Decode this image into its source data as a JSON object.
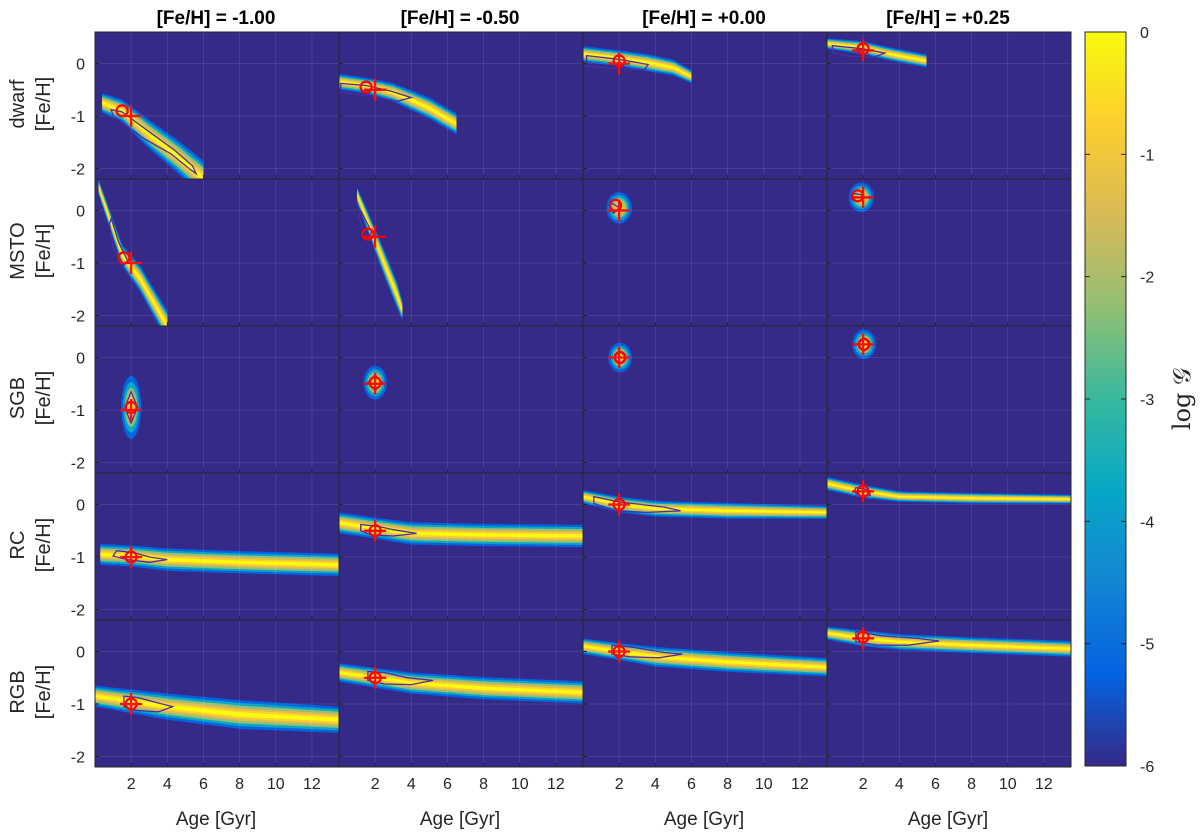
{
  "chart_data": {
    "type": "heatmap",
    "column_titles": [
      "[Fe/H] = -1.00",
      "[Fe/H] = -0.50",
      "[Fe/H] = +0.00",
      "[Fe/H] = +0.25"
    ],
    "row_labels": [
      "dwarf",
      "MSTO",
      "SGB",
      "RC",
      "RGB"
    ],
    "ylabel": "[Fe/H]",
    "xlabel": "Age [Gyr]",
    "x_ticks": [
      2,
      4,
      6,
      8,
      10,
      12
    ],
    "y_ticks": [
      0,
      -1,
      -2
    ],
    "xlim": [
      0,
      13.5
    ],
    "ylim": [
      -2.2,
      0.6
    ],
    "colorbar": {
      "label": "log 𝒢",
      "ticks": [
        0,
        -1,
        -2,
        -3,
        -4,
        -5,
        -6
      ],
      "range": [
        -6,
        0
      ],
      "colormap": "parula"
    },
    "true_values": {
      "age": [
        2,
        2,
        2,
        2
      ],
      "feh": [
        -1.0,
        -0.5,
        0.0,
        0.25
      ]
    },
    "panels": [
      [
        {
          "shape": "band",
          "pts": [
            [
              0.4,
              -0.75,
              0.15
            ],
            [
              1.5,
              -0.9,
              0.17
            ],
            [
              3,
              -1.35,
              0.22
            ],
            [
              4.5,
              -1.75,
              0.25
            ],
            [
              6,
              -2.2,
              0.28
            ]
          ],
          "peak": [
            1.5,
            -0.9
          ],
          "contour": [
            [
              0.9,
              -0.88
            ],
            [
              1.5,
              -0.92
            ],
            [
              3,
              -1.3
            ],
            [
              4.4,
              -1.65
            ],
            [
              5.4,
              -1.95
            ],
            [
              5.6,
              -2.1
            ],
            [
              5.2,
              -2.0
            ],
            [
              4.2,
              -1.72
            ],
            [
              2.8,
              -1.45
            ],
            [
              1.6,
              -1.15
            ],
            [
              1.0,
              -1.0
            ]
          ]
        },
        {
          "shape": "band",
          "pts": [
            [
              0,
              -0.35,
              0.12
            ],
            [
              1.5,
              -0.42,
              0.12
            ],
            [
              3,
              -0.55,
              0.14
            ],
            [
              5,
              -0.85,
              0.16
            ],
            [
              6.5,
              -1.15,
              0.16
            ]
          ],
          "peak": [
            1.5,
            -0.45
          ],
          "contour": [
            [
              0.1,
              -0.38
            ],
            [
              1.5,
              -0.42
            ],
            [
              2.8,
              -0.52
            ],
            [
              4.0,
              -0.65
            ],
            [
              3.2,
              -0.72
            ],
            [
              1.8,
              -0.62
            ],
            [
              0.1,
              -0.55
            ]
          ]
        },
        {
          "shape": "band",
          "pts": [
            [
              0,
              0.18,
              0.12
            ],
            [
              2,
              0.1,
              0.12
            ],
            [
              3.5,
              0.02,
              0.13
            ],
            [
              5,
              -0.08,
              0.12
            ],
            [
              6,
              -0.25,
              0.1
            ]
          ],
          "peak": [
            2,
            0.05
          ],
          "contour": [
            [
              0.2,
              0.15
            ],
            [
              2,
              0.08
            ],
            [
              3.6,
              -0.02
            ],
            [
              3.4,
              -0.12
            ],
            [
              2.0,
              -0.1
            ],
            [
              0.2,
              -0.05
            ]
          ]
        },
        {
          "shape": "band",
          "pts": [
            [
              0,
              0.38,
              0.08
            ],
            [
              2,
              0.3,
              0.1
            ],
            [
              3.5,
              0.18,
              0.1
            ],
            [
              5.5,
              0.05,
              0.1
            ]
          ],
          "peak": [
            2,
            0.28
          ],
          "contour": [
            [
              0.3,
              0.34
            ],
            [
              2,
              0.28
            ],
            [
              3.2,
              0.2
            ],
            [
              2.6,
              0.12
            ],
            [
              1.2,
              0.14
            ],
            [
              0.3,
              0.22
            ]
          ]
        }
      ],
      [
        {
          "shape": "band",
          "pts": [
            [
              0.2,
              0.45,
              0.12
            ],
            [
              1.5,
              -0.85,
              0.16
            ],
            [
              2.5,
              -1.3,
              0.2
            ],
            [
              3.5,
              -1.9,
              0.22
            ],
            [
              4,
              -2.2,
              0.24
            ]
          ],
          "peak": [
            1.6,
            -0.9
          ],
          "contour": [
            [
              0.9,
              -0.15
            ],
            [
              1.3,
              -0.6
            ],
            [
              1.8,
              -0.95
            ],
            [
              1.6,
              -1.05
            ],
            [
              1.0,
              -0.7
            ],
            [
              0.8,
              -0.25
            ]
          ]
        },
        {
          "shape": "band",
          "pts": [
            [
              1.0,
              0.3,
              0.12
            ],
            [
              1.7,
              -0.3,
              0.16
            ],
            [
              2.5,
              -1.0,
              0.2
            ],
            [
              3.2,
              -1.6,
              0.2
            ],
            [
              3.5,
              -1.9,
              0.15
            ]
          ],
          "peak": [
            1.6,
            -0.45
          ],
          "contour": [
            [
              1.2,
              0.0
            ],
            [
              1.8,
              -0.4
            ],
            [
              1.7,
              -0.55
            ],
            [
              1.3,
              -0.35
            ],
            [
              1.1,
              -0.1
            ]
          ]
        },
        {
          "shape": "blob",
          "cx": 2.0,
          "cy": 0.05,
          "rx": 0.7,
          "ry": 0.3,
          "peak": [
            1.8,
            0.1
          ],
          "contour": [
            [
              1.5,
              0.15
            ],
            [
              1.8,
              0.1
            ],
            [
              2.0,
              0.05
            ],
            [
              1.7,
              -0.05
            ],
            [
              1.5,
              0.05
            ]
          ]
        },
        {
          "shape": "blob",
          "cx": 1.9,
          "cy": 0.25,
          "rx": 0.7,
          "ry": 0.28,
          "peak": [
            1.7,
            0.28
          ],
          "contour": [
            [
              1.4,
              0.33
            ],
            [
              1.9,
              0.3
            ],
            [
              2.0,
              0.2
            ],
            [
              1.5,
              0.18
            ],
            [
              1.3,
              0.25
            ]
          ]
        }
      ],
      [
        {
          "shape": "blob",
          "cx": 2.0,
          "cy": -0.95,
          "rx": 0.55,
          "ry": 0.6,
          "peak": [
            2.0,
            -0.95
          ],
          "contour": [
            [
              2.0,
              -0.65
            ],
            [
              2.35,
              -0.95
            ],
            [
              2.0,
              -1.25
            ],
            [
              1.65,
              -0.95
            ]
          ]
        },
        {
          "shape": "blob",
          "cx": 2.0,
          "cy": -0.48,
          "rx": 0.65,
          "ry": 0.32,
          "peak": [
            2.0,
            -0.48
          ],
          "contour": [
            [
              2.0,
              -0.33
            ],
            [
              2.4,
              -0.48
            ],
            [
              2.0,
              -0.63
            ],
            [
              1.6,
              -0.48
            ]
          ]
        },
        {
          "shape": "blob",
          "cx": 2.05,
          "cy": 0.0,
          "rx": 0.65,
          "ry": 0.28,
          "peak": [
            2.05,
            0.0
          ],
          "contour": [
            [
              2.05,
              0.12
            ],
            [
              2.4,
              0.0
            ],
            [
              2.05,
              -0.12
            ],
            [
              1.7,
              0.0
            ]
          ]
        },
        {
          "shape": "blob",
          "cx": 2.05,
          "cy": 0.25,
          "rx": 0.65,
          "ry": 0.28,
          "peak": [
            2.05,
            0.25
          ],
          "contour": [
            [
              2.05,
              0.37
            ],
            [
              2.4,
              0.25
            ],
            [
              2.05,
              0.13
            ],
            [
              1.7,
              0.25
            ]
          ]
        }
      ],
      [
        {
          "shape": "band",
          "pts": [
            [
              0.3,
              -0.95,
              0.16
            ],
            [
              2,
              -0.98,
              0.16
            ],
            [
              4,
              -1.05,
              0.17
            ],
            [
              8,
              -1.1,
              0.17
            ],
            [
              13.5,
              -1.15,
              0.17
            ]
          ],
          "peak": [
            2,
            -1.0
          ],
          "contour": [
            [
              1.2,
              -0.88
            ],
            [
              2.2,
              -0.92
            ],
            [
              3.0,
              -1.0
            ],
            [
              4.0,
              -1.05
            ],
            [
              3.0,
              -1.1
            ],
            [
              1.8,
              -1.05
            ],
            [
              1.0,
              -0.98
            ]
          ]
        },
        {
          "shape": "band",
          "pts": [
            [
              0,
              -0.35,
              0.16
            ],
            [
              2,
              -0.45,
              0.16
            ],
            [
              4,
              -0.55,
              0.17
            ],
            [
              8,
              -0.58,
              0.17
            ],
            [
              13.5,
              -0.6,
              0.17
            ]
          ],
          "peak": [
            2,
            -0.5
          ],
          "contour": [
            [
              1.2,
              -0.38
            ],
            [
              2.2,
              -0.42
            ],
            [
              3.0,
              -0.48
            ],
            [
              4.3,
              -0.55
            ],
            [
              3.0,
              -0.6
            ],
            [
              1.8,
              -0.58
            ],
            [
              1.2,
              -0.5
            ]
          ]
        },
        {
          "shape": "band",
          "pts": [
            [
              0,
              0.15,
              0.1
            ],
            [
              2,
              0.0,
              0.12
            ],
            [
              4,
              -0.08,
              0.12
            ],
            [
              8,
              -0.12,
              0.12
            ],
            [
              13.5,
              -0.15,
              0.1
            ]
          ],
          "peak": [
            2,
            0.0
          ],
          "contour": [
            [
              0.6,
              0.15
            ],
            [
              2,
              0.05
            ],
            [
              4.5,
              -0.05
            ],
            [
              5.4,
              -0.12
            ],
            [
              3.5,
              -0.15
            ],
            [
              1.8,
              -0.12
            ],
            [
              0.6,
              0.02
            ]
          ]
        },
        {
          "shape": "band",
          "pts": [
            [
              0,
              0.4,
              0.1
            ],
            [
              2,
              0.25,
              0.1
            ],
            [
              4,
              0.15,
              0.08
            ],
            [
              8,
              0.12,
              0.08
            ],
            [
              13.5,
              0.1,
              0.07
            ]
          ],
          "peak": [
            2,
            0.25
          ],
          "contour": [
            [
              1.6,
              0.32
            ],
            [
              2.3,
              0.28
            ],
            [
              2.4,
              0.18
            ],
            [
              1.8,
              0.16
            ],
            [
              1.5,
              0.25
            ]
          ]
        }
      ],
      [
        {
          "shape": "band",
          "pts": [
            [
              0,
              -0.85,
              0.16
            ],
            [
              2,
              -0.95,
              0.18
            ],
            [
              4,
              -1.05,
              0.2
            ],
            [
              8,
              -1.2,
              0.22
            ],
            [
              13.5,
              -1.3,
              0.2
            ]
          ],
          "peak": [
            2,
            -1.0
          ],
          "contour": [
            [
              1.6,
              -0.85
            ],
            [
              2.4,
              -0.88
            ],
            [
              3.5,
              -0.98
            ],
            [
              4.3,
              -1.05
            ],
            [
              3.5,
              -1.15
            ],
            [
              2.2,
              -1.12
            ],
            [
              1.6,
              -1.05
            ]
          ]
        },
        {
          "shape": "band",
          "pts": [
            [
              0,
              -0.4,
              0.14
            ],
            [
              2,
              -0.5,
              0.15
            ],
            [
              4,
              -0.6,
              0.16
            ],
            [
              8,
              -0.7,
              0.17
            ],
            [
              13.5,
              -0.78,
              0.17
            ]
          ],
          "peak": [
            2,
            -0.5
          ],
          "contour": [
            [
              1.6,
              -0.38
            ],
            [
              2.5,
              -0.4
            ],
            [
              3.8,
              -0.5
            ],
            [
              5.2,
              -0.55
            ],
            [
              4.0,
              -0.63
            ],
            [
              2.5,
              -0.62
            ],
            [
              1.6,
              -0.55
            ]
          ]
        },
        {
          "shape": "band",
          "pts": [
            [
              0,
              0.1,
              0.12
            ],
            [
              2,
              0.0,
              0.13
            ],
            [
              4,
              -0.1,
              0.15
            ],
            [
              8,
              -0.2,
              0.15
            ],
            [
              13.5,
              -0.3,
              0.14
            ]
          ],
          "peak": [
            2,
            0.0
          ],
          "contour": [
            [
              1.6,
              0.12
            ],
            [
              2.8,
              0.08
            ],
            [
              4.5,
              -0.02
            ],
            [
              5.5,
              -0.05
            ],
            [
              4.2,
              -0.12
            ],
            [
              2.6,
              -0.1
            ],
            [
              1.6,
              -0.05
            ]
          ]
        },
        {
          "shape": "band",
          "pts": [
            [
              0,
              0.35,
              0.1
            ],
            [
              2,
              0.25,
              0.12
            ],
            [
              4,
              0.18,
              0.12
            ],
            [
              8,
              0.12,
              0.12
            ],
            [
              13.5,
              0.05,
              0.12
            ]
          ],
          "peak": [
            2,
            0.28
          ],
          "contour": [
            [
              1.6,
              0.38
            ],
            [
              3,
              0.3
            ],
            [
              5,
              0.25
            ],
            [
              6.2,
              0.2
            ],
            [
              4.5,
              0.12
            ],
            [
              2.8,
              0.12
            ],
            [
              1.6,
              0.18
            ]
          ]
        }
      ]
    ]
  }
}
